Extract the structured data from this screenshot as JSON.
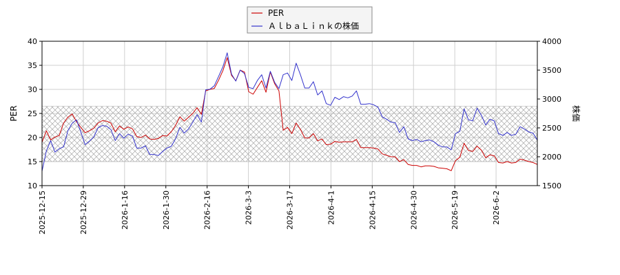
{
  "chart_data": {
    "type": "line",
    "legend": {
      "placement": "top-center"
    },
    "grid": true,
    "band": {
      "axis": "left",
      "from": 15,
      "to": 26.5,
      "pattern": "crosshatch"
    },
    "x_ticks": [
      "2025-12-15",
      "2025-12-29",
      "2026-1-16",
      "2026-1-30",
      "2026-2-16",
      "2026-3-3",
      "2026-3-17",
      "2026-4-1",
      "2026-4-15",
      "2026-4-30",
      "2026-5-19",
      "2026-6-2"
    ],
    "y_left": {
      "label": "PER",
      "ylim": [
        10,
        40
      ],
      "ticks": [
        "10",
        "15",
        "20",
        "25",
        "30",
        "35",
        "40"
      ]
    },
    "y_right": {
      "label": "株価",
      "ylim": [
        1500,
        4000
      ],
      "ticks": [
        "1500",
        "2000",
        "2500",
        "3000",
        "3500",
        "4000"
      ]
    },
    "series": [
      {
        "name": "PER",
        "color": "#cc0000",
        "axis": "left",
        "values": [
          19.0,
          21.4,
          19.5,
          20.1,
          20.4,
          23.0,
          24.2,
          24.9,
          23.3,
          22.1,
          21.0,
          21.4,
          21.9,
          23.0,
          23.5,
          23.4,
          23.0,
          21.2,
          22.4,
          21.7,
          22.2,
          21.8,
          20.2,
          20.0,
          20.5,
          19.7,
          19.6,
          19.8,
          20.4,
          20.3,
          21.2,
          22.5,
          24.3,
          23.4,
          24.2,
          25.0,
          26.2,
          24.8,
          29.7,
          30.0,
          30.2,
          31.9,
          33.9,
          36.6,
          32.9,
          31.8,
          34.0,
          33.6,
          29.5,
          29.0,
          30.4,
          31.8,
          29.4,
          33.6,
          31.2,
          29.7,
          21.5,
          22.1,
          20.8,
          23.0,
          21.7,
          19.9,
          19.9,
          20.8,
          19.3,
          19.7,
          18.5,
          18.6,
          19.2,
          19.0,
          19.1,
          19.1,
          19.1,
          19.6,
          17.9,
          17.9,
          17.9,
          17.8,
          17.6,
          16.6,
          16.3,
          16.0,
          16.0,
          15.0,
          15.4,
          14.4,
          14.2,
          14.2,
          13.9,
          14.1,
          14.1,
          14.0,
          13.7,
          13.6,
          13.5,
          13.1,
          15.2,
          15.9,
          18.8,
          17.3,
          17.1,
          18.2,
          17.4,
          15.8,
          16.4,
          16.2,
          14.8,
          14.7,
          15.0,
          14.7,
          14.8,
          15.5,
          15.3,
          15.0,
          14.8,
          14.4
        ]
      },
      {
        "name": "ＡｌｂａＬｉｎｋの株価",
        "color": "#3333cc",
        "axis": "right",
        "values": [
          1750,
          2100,
          2280,
          2080,
          2140,
          2170,
          2450,
          2580,
          2640,
          2430,
          2210,
          2270,
          2340,
          2500,
          2540,
          2530,
          2470,
          2280,
          2400,
          2320,
          2390,
          2360,
          2150,
          2150,
          2190,
          2040,
          2040,
          2020,
          2090,
          2150,
          2180,
          2310,
          2510,
          2410,
          2480,
          2600,
          2730,
          2600,
          3160,
          3170,
          3230,
          3390,
          3560,
          3800,
          3430,
          3310,
          3500,
          3440,
          3200,
          3180,
          3320,
          3420,
          3190,
          3480,
          3290,
          3180,
          3420,
          3450,
          3320,
          3620,
          3420,
          3190,
          3190,
          3300,
          3070,
          3140,
          2920,
          2890,
          3030,
          2990,
          3040,
          3020,
          3050,
          3140,
          2910,
          2910,
          2920,
          2900,
          2860,
          2690,
          2650,
          2600,
          2590,
          2420,
          2520,
          2310,
          2280,
          2300,
          2260,
          2280,
          2290,
          2260,
          2200,
          2170,
          2170,
          2120,
          2400,
          2440,
          2830,
          2640,
          2620,
          2840,
          2720,
          2550,
          2650,
          2620,
          2400,
          2370,
          2420,
          2370,
          2390,
          2520,
          2480,
          2430,
          2410,
          2290
        ]
      }
    ]
  }
}
